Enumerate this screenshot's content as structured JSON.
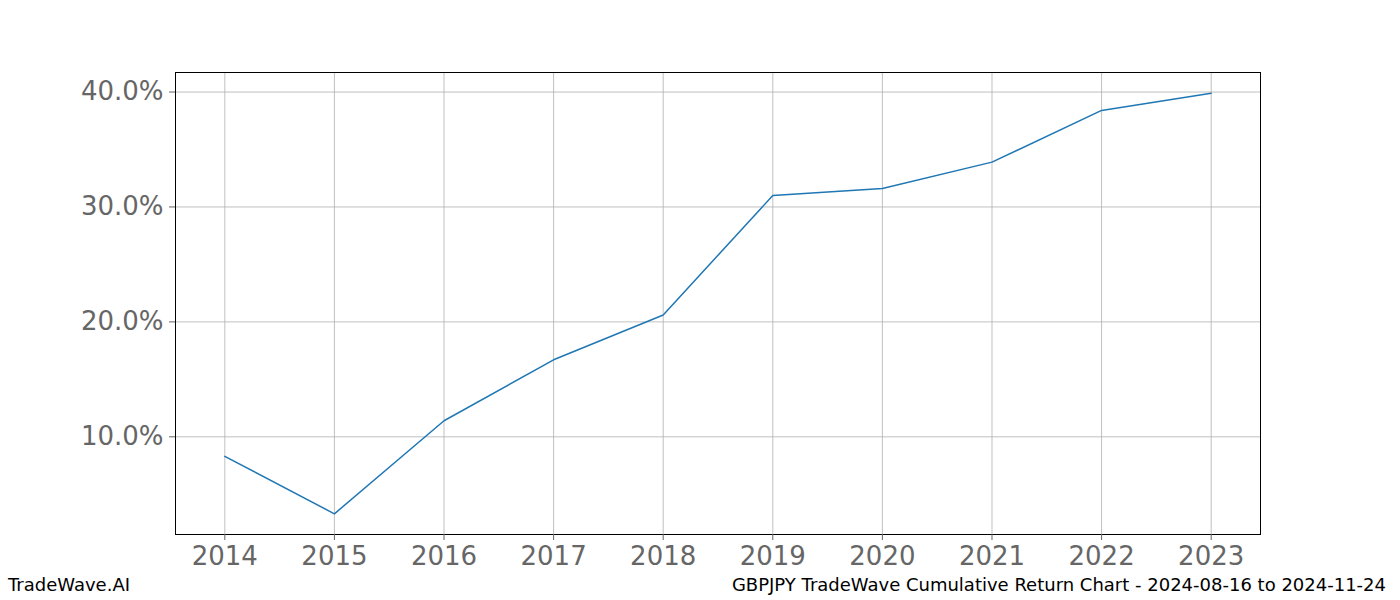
{
  "chart_data": {
    "type": "line",
    "x": [
      2014,
      2015,
      2016,
      2017,
      2018,
      2019,
      2020,
      2021,
      2022,
      2023
    ],
    "values": [
      8.3,
      3.3,
      11.4,
      16.7,
      20.6,
      31.0,
      31.6,
      33.9,
      38.4,
      39.9
    ],
    "color": "#1f77b4",
    "xlim": [
      2013.55,
      2023.45
    ],
    "xticks": [
      2014,
      2015,
      2016,
      2017,
      2018,
      2019,
      2020,
      2021,
      2022,
      2023
    ],
    "ylim": [
      1.5,
      41.7
    ],
    "yticks": [
      {
        "value": 10,
        "label": "10.0%"
      },
      {
        "value": 20,
        "label": "20.0%"
      },
      {
        "value": 30,
        "label": "30.0%"
      },
      {
        "value": 40,
        "label": "40.0%"
      }
    ],
    "grid": true,
    "source": "TradeWave.AI",
    "caption": "GBPJPY TradeWave Cumulative Return Chart - 2024-08-16 to 2024-11-24"
  }
}
